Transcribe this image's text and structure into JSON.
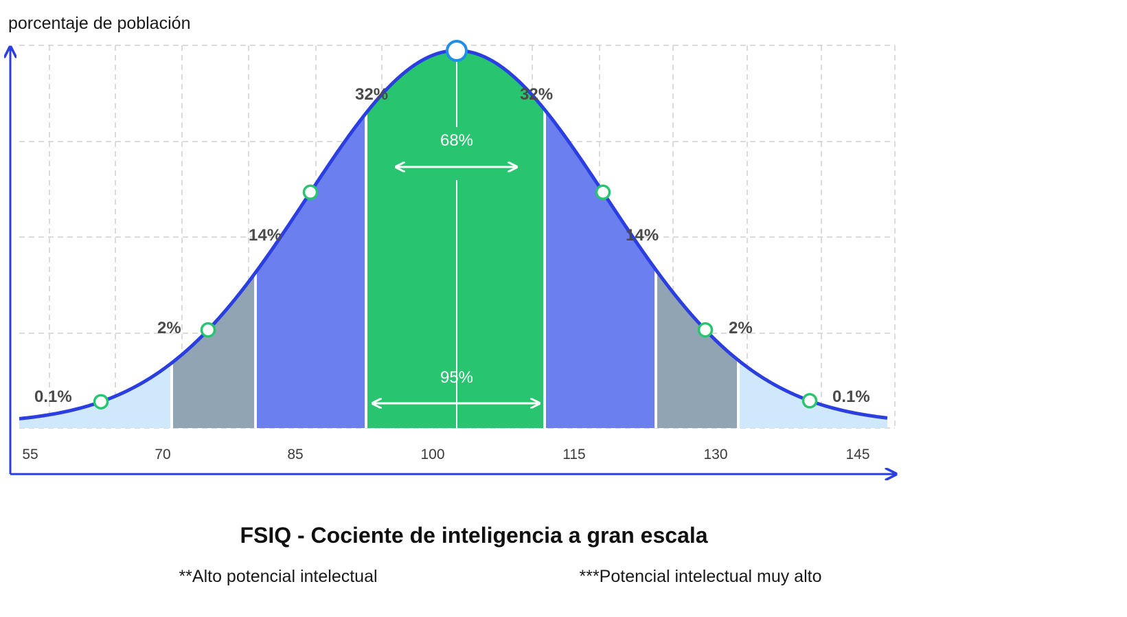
{
  "chart_data": {
    "type": "area",
    "title": "FSIQ - Cociente de inteligencia a gran escala",
    "ylabel": "porcentaje de población",
    "xlabel": "",
    "x_ticks": [
      "55",
      "70",
      "85",
      "100",
      "115",
      "130",
      "145"
    ],
    "distribution": {
      "mean": 100,
      "sd": 15
    },
    "regions": [
      {
        "label": "0.1%",
        "from": 55,
        "to": 70,
        "color": "#cfe8fb",
        "side": "left"
      },
      {
        "label": "2%",
        "from": 70,
        "to": 77,
        "color": "#90a4b3",
        "side": "left"
      },
      {
        "label": "14%",
        "from": 77,
        "to": 88,
        "color": "#6b7fef",
        "side": "left"
      },
      {
        "label": "32%",
        "from": 88,
        "to": 100,
        "color": "#28c46f",
        "side": "left"
      },
      {
        "label": "32%",
        "from": 100,
        "to": 112,
        "color": "#28c46f",
        "side": "right"
      },
      {
        "label": "14%",
        "from": 112,
        "to": 123,
        "color": "#6b7fef",
        "side": "right"
      },
      {
        "label": "2%",
        "from": 123,
        "to": 130,
        "color": "#90a4b3",
        "side": "right"
      },
      {
        "label": "0.1%",
        "from": 130,
        "to": 145,
        "color": "#cfe8fb",
        "side": "right"
      }
    ],
    "inner_labels": {
      "middle": "68%",
      "wide": "95%"
    },
    "curve_color": "#2b3fe0",
    "marker_color": "#28c46f"
  },
  "notes": {
    "high": "**Alto potencial intelectual",
    "very_high": "***Potencial intelectual muy alto"
  }
}
